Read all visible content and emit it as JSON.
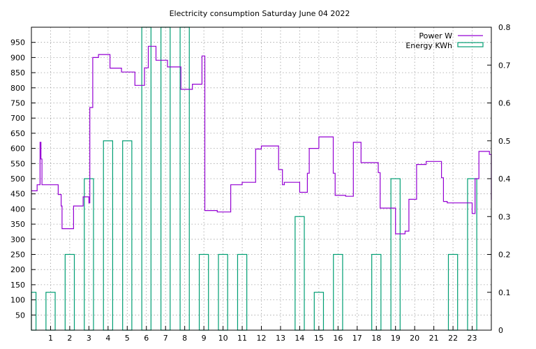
{
  "chart_data": {
    "type": "line",
    "title": "Electricity consumption Saturday June 04 2022",
    "xlabel": "",
    "ylabel": "",
    "xlim": [
      0,
      24
    ],
    "ylim": [
      0,
      1000
    ],
    "y2lim": [
      0,
      0.8
    ],
    "x_ticks": [
      1,
      2,
      3,
      4,
      5,
      6,
      7,
      8,
      9,
      10,
      11,
      12,
      13,
      14,
      15,
      16,
      17,
      18,
      19,
      20,
      21,
      22,
      23
    ],
    "y_ticks": [
      50,
      100,
      150,
      200,
      250,
      300,
      350,
      400,
      450,
      500,
      550,
      600,
      650,
      700,
      750,
      800,
      850,
      900,
      950
    ],
    "y2_ticks": [
      0,
      0.1,
      0.2,
      0.3,
      0.4,
      0.5,
      0.6,
      0.7,
      0.8
    ],
    "grid": true,
    "legend_position": "top-right",
    "series": [
      {
        "name": "Power W",
        "axis": "y",
        "style": "step",
        "color": "#9400d3",
        "points": [
          [
            0.0,
            460
          ],
          [
            0.3,
            480
          ],
          [
            0.45,
            620
          ],
          [
            0.5,
            565
          ],
          [
            0.55,
            480
          ],
          [
            1.4,
            448
          ],
          [
            1.55,
            410
          ],
          [
            1.6,
            335
          ],
          [
            2.2,
            410
          ],
          [
            2.7,
            440
          ],
          [
            3.0,
            420
          ],
          [
            3.05,
            735
          ],
          [
            3.2,
            900
          ],
          [
            3.5,
            910
          ],
          [
            4.1,
            865
          ],
          [
            4.7,
            852
          ],
          [
            5.4,
            808
          ],
          [
            5.9,
            866
          ],
          [
            6.1,
            937
          ],
          [
            6.5,
            891
          ],
          [
            7.1,
            869
          ],
          [
            7.8,
            795
          ],
          [
            8.4,
            812
          ],
          [
            8.9,
            905
          ],
          [
            9.05,
            395
          ],
          [
            9.7,
            390
          ],
          [
            10.4,
            480
          ],
          [
            11.0,
            488
          ],
          [
            11.7,
            598
          ],
          [
            12.0,
            608
          ],
          [
            12.9,
            530
          ],
          [
            13.1,
            480
          ],
          [
            13.2,
            488
          ],
          [
            14.0,
            455
          ],
          [
            14.4,
            518
          ],
          [
            14.5,
            600
          ],
          [
            15.0,
            638
          ],
          [
            15.75,
            518
          ],
          [
            15.85,
            445
          ],
          [
            16.4,
            442
          ],
          [
            16.8,
            620
          ],
          [
            17.2,
            553
          ],
          [
            18.1,
            520
          ],
          [
            18.2,
            403
          ],
          [
            19.0,
            318
          ],
          [
            19.5,
            327
          ],
          [
            19.7,
            432
          ],
          [
            20.1,
            547
          ],
          [
            20.6,
            557
          ],
          [
            21.4,
            503
          ],
          [
            21.5,
            425
          ],
          [
            21.7,
            420
          ],
          [
            23.0,
            385
          ],
          [
            23.15,
            500
          ],
          [
            23.35,
            590
          ],
          [
            23.9,
            580
          ],
          [
            24.0,
            430
          ]
        ]
      },
      {
        "name": "Energy KWh",
        "axis": "y2",
        "style": "boxes",
        "color": "#009e73",
        "x": [
          0,
          1,
          2,
          3,
          4,
          5,
          6,
          7,
          8,
          9,
          10,
          11,
          12,
          13,
          14,
          15,
          16,
          17,
          18,
          19,
          20,
          21,
          22,
          23
        ],
        "values": [
          0.1,
          0.1,
          0.2,
          0.4,
          0.5,
          0.5,
          0.8,
          0.8,
          0.8,
          0.2,
          0.2,
          0.2,
          0.0,
          0.0,
          0.3,
          0.1,
          0.2,
          0.0,
          0.2,
          0.4,
          0.0,
          0.0,
          0.2,
          0.4
        ]
      }
    ]
  }
}
